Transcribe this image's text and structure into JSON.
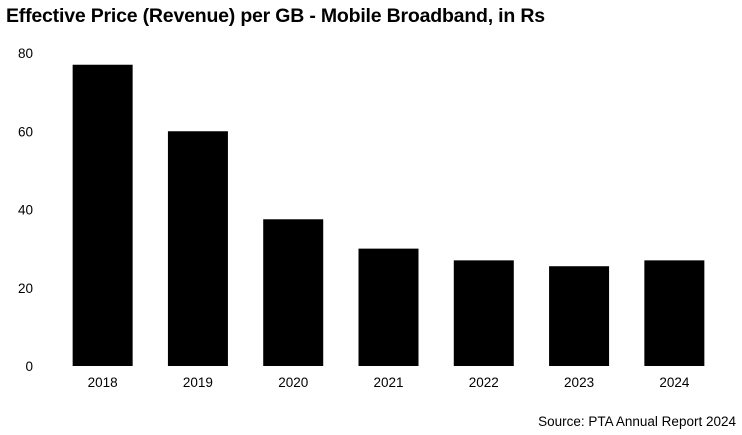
{
  "chart_data": {
    "type": "bar",
    "title": "Effective Price (Revenue) per GB - Mobile Broadband, in Rs",
    "categories": [
      "2018",
      "2019",
      "2020",
      "2021",
      "2022",
      "2023",
      "2024"
    ],
    "values": [
      77,
      60,
      37.5,
      30,
      27,
      25.5,
      27
    ],
    "xlabel": "",
    "ylabel": "",
    "ylim": [
      0,
      80
    ],
    "yticks": [
      0,
      20,
      40,
      60,
      80
    ],
    "grid": false,
    "bar_color": "#000000",
    "source": "Source: PTA Annual Report 2024"
  }
}
